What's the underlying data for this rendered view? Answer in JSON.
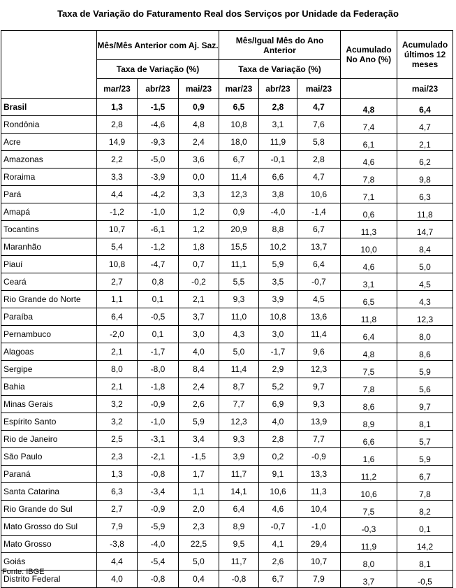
{
  "title": "Taxa de Variação do Faturamento Real dos Serviços por Unidade da Federação",
  "header": {
    "group1": "Mês/Mês Anterior com Aj. Saz.",
    "group2": "Mês/Igual Mês do Ano Anterior",
    "rate_label": "Taxa de Variação (%)",
    "acc_year": "Acumulado No Ano (%)",
    "acc_12": "Acumulado últimos 12 meses",
    "months": [
      "mar/23",
      "abr/23",
      "mai/23"
    ],
    "acc_12_month": "mai/23"
  },
  "rows": [
    {
      "name": "Brasil",
      "v": [
        "1,3",
        "-1,5",
        "0,9",
        "6,5",
        "2,8",
        "4,7",
        "4,8",
        "6,4"
      ]
    },
    {
      "name": "Rondônia",
      "v": [
        "2,8",
        "-4,6",
        "4,8",
        "10,8",
        "3,1",
        "7,6",
        "7,4",
        "4,7"
      ]
    },
    {
      "name": "Acre",
      "v": [
        "14,9",
        "-9,3",
        "2,4",
        "18,0",
        "11,9",
        "5,8",
        "6,1",
        "2,1"
      ]
    },
    {
      "name": "Amazonas",
      "v": [
        "2,2",
        "-5,0",
        "3,6",
        "6,7",
        "-0,1",
        "2,8",
        "4,6",
        "6,2"
      ]
    },
    {
      "name": "Roraima",
      "v": [
        "3,3",
        "-3,9",
        "0,0",
        "11,4",
        "6,6",
        "4,7",
        "7,8",
        "9,8"
      ]
    },
    {
      "name": "Pará",
      "v": [
        "4,4",
        "-4,2",
        "3,3",
        "12,3",
        "3,8",
        "10,6",
        "7,1",
        "6,3"
      ]
    },
    {
      "name": "Amapá",
      "v": [
        "-1,2",
        "-1,0",
        "1,2",
        "0,9",
        "-4,0",
        "-1,4",
        "0,6",
        "11,8"
      ]
    },
    {
      "name": "Tocantins",
      "v": [
        "10,7",
        "-6,1",
        "1,2",
        "20,9",
        "8,8",
        "6,7",
        "11,3",
        "14,7"
      ]
    },
    {
      "name": "Maranhão",
      "v": [
        "5,4",
        "-1,2",
        "1,8",
        "15,5",
        "10,2",
        "13,7",
        "10,0",
        "8,4"
      ]
    },
    {
      "name": "Piauí",
      "v": [
        "10,8",
        "-4,7",
        "0,7",
        "11,1",
        "5,9",
        "6,4",
        "4,6",
        "5,0"
      ]
    },
    {
      "name": "Ceará",
      "v": [
        "2,7",
        "0,8",
        "-0,2",
        "5,5",
        "3,5",
        "-0,7",
        "3,1",
        "4,5"
      ]
    },
    {
      "name": "Rio Grande do Norte",
      "v": [
        "1,1",
        "0,1",
        "2,1",
        "9,3",
        "3,9",
        "4,5",
        "6,5",
        "4,3"
      ]
    },
    {
      "name": "Paraíba",
      "v": [
        "6,4",
        "-0,5",
        "3,7",
        "11,0",
        "10,8",
        "13,6",
        "11,8",
        "12,3"
      ]
    },
    {
      "name": "Pernambuco",
      "v": [
        "-2,0",
        "0,1",
        "3,0",
        "4,3",
        "3,0",
        "11,4",
        "6,4",
        "8,0"
      ]
    },
    {
      "name": "Alagoas",
      "v": [
        "2,1",
        "-1,7",
        "4,0",
        "5,0",
        "-1,7",
        "9,6",
        "4,8",
        "8,6"
      ]
    },
    {
      "name": "Sergipe",
      "v": [
        "8,0",
        "-8,0",
        "8,4",
        "11,4",
        "2,9",
        "12,3",
        "7,5",
        "5,9"
      ]
    },
    {
      "name": "Bahia",
      "v": [
        "2,1",
        "-1,8",
        "2,4",
        "8,7",
        "5,2",
        "9,7",
        "7,8",
        "5,6"
      ]
    },
    {
      "name": "Minas Gerais",
      "v": [
        "3,2",
        "-0,9",
        "2,6",
        "7,7",
        "6,9",
        "9,3",
        "8,6",
        "9,7"
      ]
    },
    {
      "name": "Espírito Santo",
      "v": [
        "3,2",
        "-1,0",
        "5,9",
        "12,3",
        "4,0",
        "13,9",
        "8,9",
        "8,1"
      ]
    },
    {
      "name": "Rio de Janeiro",
      "v": [
        "2,5",
        "-3,1",
        "3,4",
        "9,3",
        "2,8",
        "7,7",
        "6,6",
        "5,7"
      ]
    },
    {
      "name": "São Paulo",
      "v": [
        "2,3",
        "-2,1",
        "-1,5",
        "3,9",
        "0,2",
        "-0,9",
        "1,6",
        "5,9"
      ]
    },
    {
      "name": "Paraná",
      "v": [
        "1,3",
        "-0,8",
        "1,7",
        "11,7",
        "9,1",
        "13,3",
        "11,2",
        "6,7"
      ]
    },
    {
      "name": "Santa Catarina",
      "v": [
        "6,3",
        "-3,4",
        "1,1",
        "14,1",
        "10,6",
        "11,3",
        "10,6",
        "7,8"
      ]
    },
    {
      "name": "Rio Grande do Sul",
      "v": [
        "2,7",
        "-0,9",
        "2,0",
        "6,4",
        "4,6",
        "10,4",
        "7,5",
        "8,2"
      ]
    },
    {
      "name": "Mato Grosso do Sul",
      "v": [
        "7,9",
        "-5,9",
        "2,3",
        "8,9",
        "-0,7",
        "-1,0",
        "-0,3",
        "0,1"
      ]
    },
    {
      "name": "Mato Grosso",
      "v": [
        "-3,8",
        "-4,0",
        "22,5",
        "9,5",
        "4,1",
        "29,4",
        "11,9",
        "14,2"
      ]
    },
    {
      "name": "Goiás",
      "v": [
        "4,4",
        "-5,4",
        "5,0",
        "11,7",
        "2,6",
        "10,7",
        "8,0",
        "8,1"
      ]
    },
    {
      "name": "Distrito Federal",
      "v": [
        "4,0",
        "-0,8",
        "0,4",
        "-0,8",
        "6,7",
        "7,9",
        "3,7",
        "-0,5"
      ]
    }
  ],
  "source": "Fonte: IBGE"
}
